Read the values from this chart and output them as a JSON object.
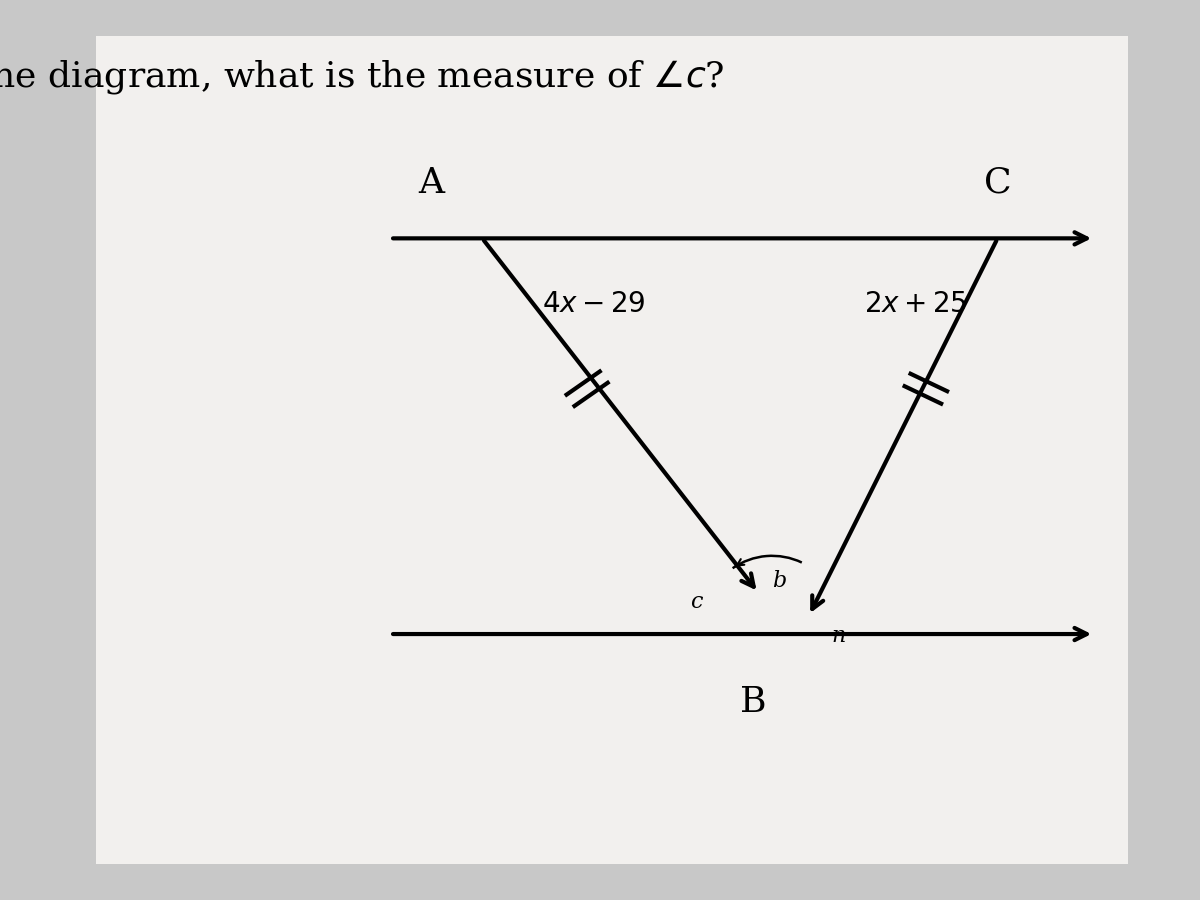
{
  "title": "In the diagram, what is the measure of $\\angle c$?",
  "title_fontsize": 26,
  "bg_color": "#c8c8c8",
  "panel_color": "#f2f0ee",
  "label_A": "A",
  "label_C": "C",
  "label_B": "B",
  "label_c": "c",
  "label_b": "b",
  "label_n": "n",
  "expr_left": "$4x-29$",
  "expr_right": "$2x+25$",
  "line_color": "#000000",
  "line_width": 3.0
}
